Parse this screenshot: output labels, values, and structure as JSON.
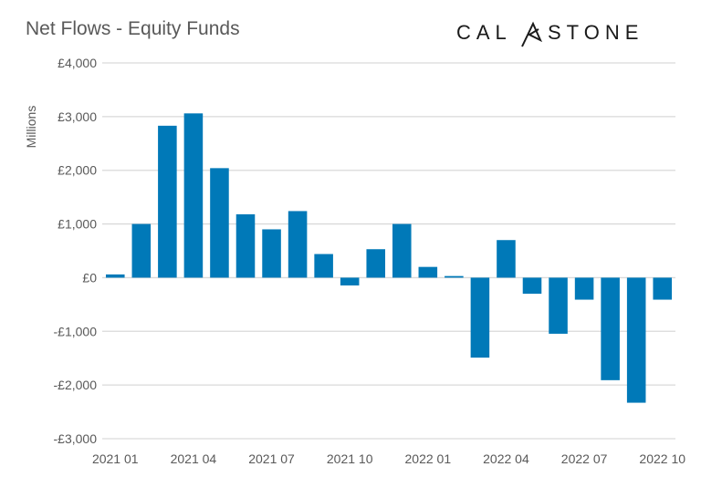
{
  "chart_data": {
    "type": "bar",
    "title": "Net Flows - Equity Funds",
    "ylabel": "Millions",
    "xlabel": "",
    "ylim": [
      -3000,
      4000
    ],
    "yticks": [
      4000,
      3000,
      2000,
      1000,
      0,
      -1000,
      -2000,
      -3000
    ],
    "ytick_labels": [
      "£4,000",
      "£3,000",
      "£2,000",
      "£1,000",
      "£0",
      "-£1,000",
      "-£2,000",
      "-£3,000"
    ],
    "grid": true,
    "categories": [
      "2021 01",
      "2021 02",
      "2021 03",
      "2021 04",
      "2021 05",
      "2021 06",
      "2021 07",
      "2021 08",
      "2021 09",
      "2021 10",
      "2021 11",
      "2021 12",
      "2022 01",
      "2022 02",
      "2022 03",
      "2022 04",
      "2022 05",
      "2022 06",
      "2022 07",
      "2022 08",
      "2022 09",
      "2022 10"
    ],
    "xtick_labels": [
      "2021 01",
      "2021 04",
      "2021 07",
      "2021 10",
      "2022 01",
      "2022 04",
      "2022 07",
      "2022 10"
    ],
    "values": [
      60,
      1000,
      2830,
      3060,
      2040,
      1180,
      900,
      1240,
      440,
      -145,
      530,
      1000,
      200,
      30,
      -1490,
      700,
      -300,
      -1045,
      -410,
      -1910,
      -2330,
      -410
    ],
    "bar_color": "#0079B8",
    "grid_color": "#D9D9D9"
  },
  "logo": {
    "text": "CALASTONE"
  }
}
